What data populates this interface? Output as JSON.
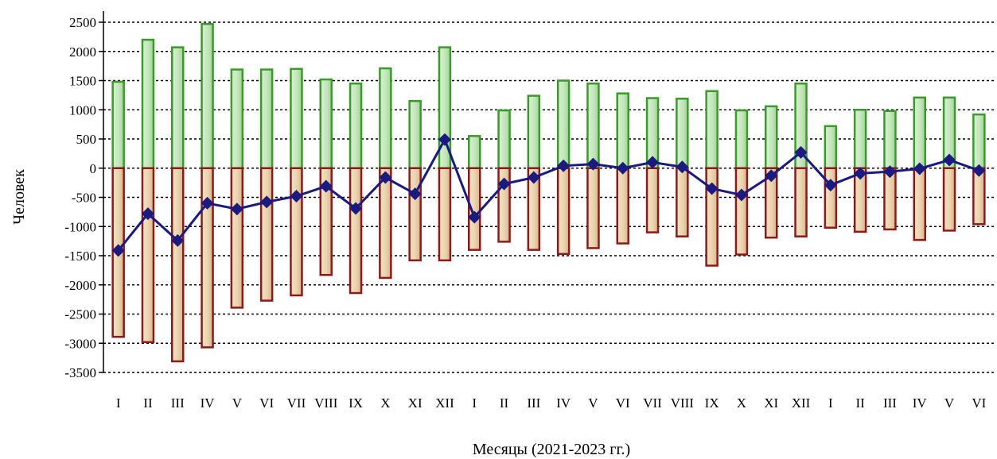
{
  "chart_data": {
    "type": "bar",
    "xlabel": "Месяцы (2021-2023 гг.)",
    "ylabel": "Человек",
    "ylim": [
      -3500,
      2500
    ],
    "yticks": [
      2500,
      2000,
      1500,
      1000,
      500,
      0,
      -500,
      -1000,
      -1500,
      -2000,
      -2500,
      -3000,
      -3500
    ],
    "grid": "horizontal dotted",
    "legend": "none",
    "colors": {
      "positive_bar": "#3a9a2a",
      "negative_bar": "#8b1a1a",
      "line": "#1a1a80"
    },
    "categories": [
      "I",
      "II",
      "III",
      "IV",
      "V",
      "VI",
      "VII",
      "VIII",
      "IX",
      "X",
      "XI",
      "XII",
      "I",
      "II",
      "III",
      "IV",
      "V",
      "VI",
      "VII",
      "VIII",
      "IX",
      "X",
      "XI",
      "XII",
      "I",
      "II",
      "III",
      "IV",
      "V",
      "VI"
    ],
    "series": [
      {
        "type": "bar",
        "values": [
          1480,
          2200,
          2070,
          2470,
          1690,
          1690,
          1700,
          1520,
          1450,
          1710,
          1150,
          2070,
          550,
          990,
          1240,
          1500,
          1450,
          1280,
          1200,
          1190,
          1320,
          990,
          1060,
          1450,
          720,
          1000,
          980,
          1210,
          1210,
          920
        ]
      },
      {
        "type": "bar",
        "values": [
          -2890,
          -2980,
          -3310,
          -3070,
          -2390,
          -2270,
          -2180,
          -1830,
          -2140,
          -1880,
          -1580,
          -1580,
          -1400,
          -1260,
          -1400,
          -1470,
          -1370,
          -1290,
          -1100,
          -1170,
          -1670,
          -1480,
          -1190,
          -1170,
          -1020,
          -1090,
          -1050,
          -1230,
          -1070,
          -960
        ]
      },
      {
        "type": "line",
        "values": [
          -1410,
          -780,
          -1240,
          -600,
          -700,
          -580,
          -480,
          -310,
          -690,
          -160,
          -440,
          490,
          -840,
          -270,
          -160,
          40,
          70,
          0,
          100,
          20,
          -350,
          -460,
          -130,
          270,
          -290,
          -90,
          -60,
          -10,
          140,
          -40
        ]
      }
    ]
  }
}
